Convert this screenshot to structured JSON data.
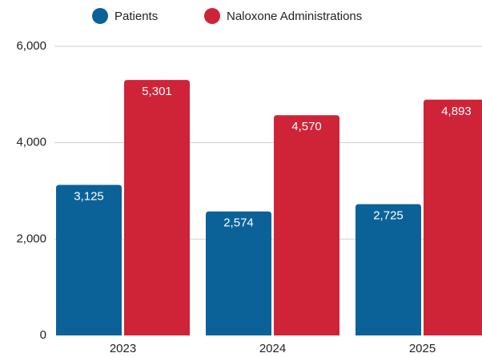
{
  "chart_data": {
    "type": "bar",
    "categories": [
      "2023",
      "2024",
      "2025"
    ],
    "series": [
      {
        "name": "Patients",
        "color": "#0b6298",
        "values": [
          3125,
          2574,
          2725
        ],
        "value_labels": [
          "3,125",
          "2,574",
          "2,725"
        ]
      },
      {
        "name": "Naloxone Administrations",
        "color": "#cf2338",
        "values": [
          5301,
          4570,
          4893
        ],
        "value_labels": [
          "5,301",
          "4,570",
          "4,893"
        ]
      }
    ],
    "ylim": [
      0,
      6000
    ],
    "yticks": [
      0,
      {
        "value": 2000,
        "label": "2,000"
      },
      {
        "value": 4000,
        "label": "4,000"
      },
      {
        "value": 6000,
        "label": "6,000"
      }
    ],
    "grid": true,
    "legend": "top"
  }
}
